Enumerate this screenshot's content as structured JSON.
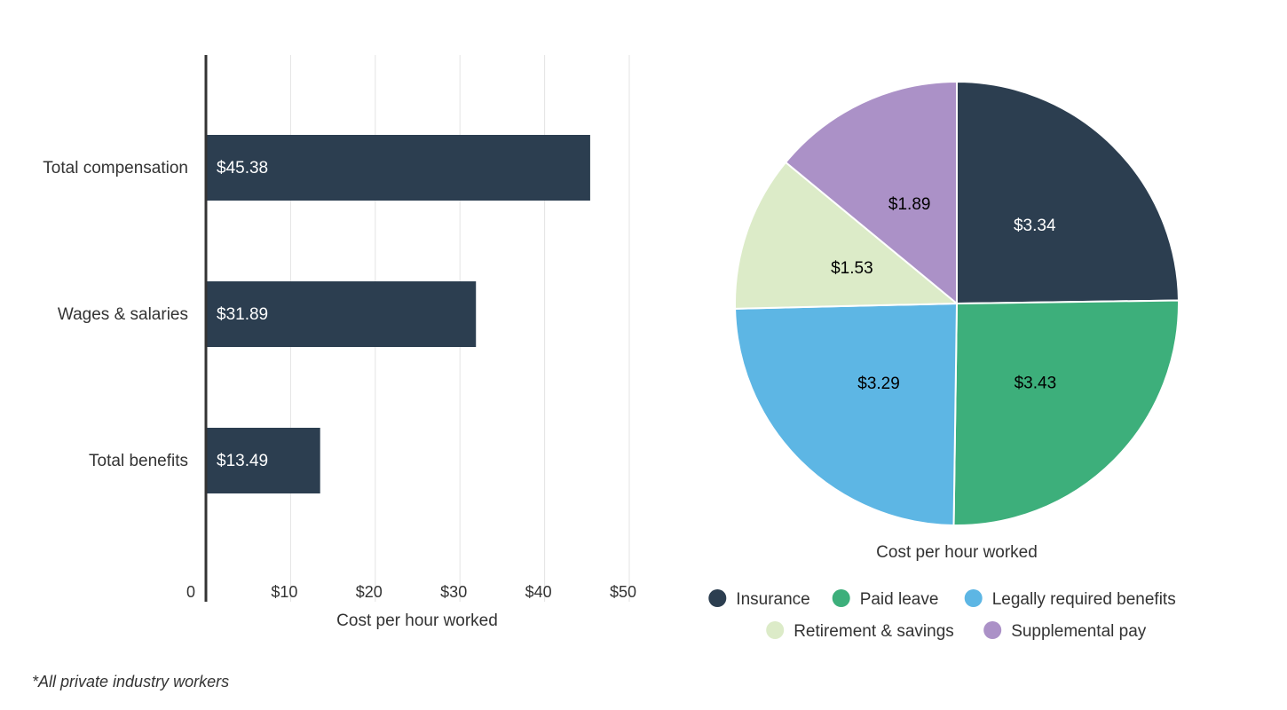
{
  "chart_data": [
    {
      "type": "bar",
      "orientation": "horizontal",
      "categories": [
        "Total compensation",
        "Wages & salaries",
        "Total benefits"
      ],
      "values": [
        45.38,
        31.89,
        13.49
      ],
      "data_labels": [
        "$45.38",
        "$31.89",
        "$13.49"
      ],
      "xlabel": "Cost per hour worked",
      "ylabel": "",
      "xlim": [
        0,
        50
      ],
      "x_ticks": [
        0,
        10,
        20,
        30,
        40,
        50
      ],
      "x_tick_labels": [
        "0",
        "$10",
        "$20",
        "$30",
        "$40",
        "$50"
      ],
      "grid": true,
      "bar_color": "#2c3e50"
    },
    {
      "type": "pie",
      "labels": [
        "Insurance",
        "Paid leave",
        "Legally required benefits",
        "Retirement & savings",
        "Supplemental pay"
      ],
      "values": [
        3.34,
        3.43,
        3.29,
        1.53,
        1.89
      ],
      "data_labels": [
        "$3.34",
        "$3.43",
        "$3.29",
        "$1.53",
        "$1.89"
      ],
      "colors": [
        "#2c3e50",
        "#3daf7b",
        "#5db6e4",
        "#dcebc8",
        "#ab91c7"
      ],
      "label_colors": [
        "#ffffff",
        "#000000",
        "#000000",
        "#000000",
        "#000000"
      ],
      "xlabel": "Cost per hour worked",
      "legend": "bottom"
    }
  ],
  "footnote": "*All private industry workers"
}
